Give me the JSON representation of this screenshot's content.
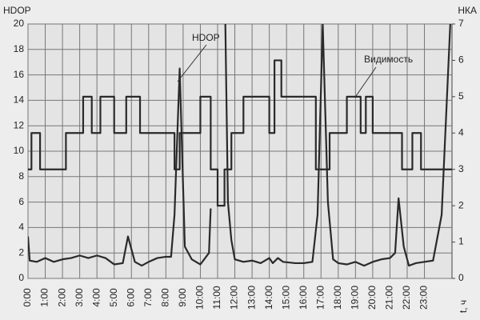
{
  "chart_data": {
    "type": "line",
    "ylabel": "HDOP",
    "y2label": "НКА",
    "xlabel": "t, ч",
    "xlim": [
      0,
      24.6
    ],
    "xticks": [
      {
        "value": 0,
        "label": "0:00"
      },
      {
        "value": 1,
        "label": "1:00"
      },
      {
        "value": 2,
        "label": "2:00"
      },
      {
        "value": 3,
        "label": "3:00"
      },
      {
        "value": 4,
        "label": "4:00"
      },
      {
        "value": 5,
        "label": "5:00"
      },
      {
        "value": 6,
        "label": "6:00"
      },
      {
        "value": 7,
        "label": "7:00"
      },
      {
        "value": 8,
        "label": "8:00"
      },
      {
        "value": 9,
        "label": "9:00"
      },
      {
        "value": 10,
        "label": "10:00"
      },
      {
        "value": 11,
        "label": "11:00"
      },
      {
        "value": 12,
        "label": "12:00"
      },
      {
        "value": 13,
        "label": "13:00"
      },
      {
        "value": 14,
        "label": "14:00"
      },
      {
        "value": 15,
        "label": "15:00"
      },
      {
        "value": 16,
        "label": "16:00"
      },
      {
        "value": 17,
        "label": "17:00"
      },
      {
        "value": 18,
        "label": "18:00"
      },
      {
        "value": 19,
        "label": "19:00"
      },
      {
        "value": 20,
        "label": "20:00"
      },
      {
        "value": 21,
        "label": "21:00"
      },
      {
        "value": 22,
        "label": "22:00"
      },
      {
        "value": 23,
        "label": "23:00"
      }
    ],
    "ylim": [
      0,
      20
    ],
    "yticks": [
      0,
      2,
      4,
      6,
      8,
      10,
      12,
      14,
      16,
      18,
      20
    ],
    "y2lim": [
      0,
      7
    ],
    "y2ticks": [
      0,
      1,
      2,
      3,
      4,
      5,
      6,
      7
    ],
    "grid": true,
    "series": [
      {
        "name": "HDOP",
        "color": "#2a2a2a",
        "x": [
          0,
          0.1,
          0.5,
          1,
          1.5,
          2,
          2.5,
          3,
          3.5,
          4,
          4.5,
          5,
          5.5,
          5.8,
          6.2,
          6.6,
          7,
          7.5,
          8,
          8.3,
          8.5,
          8.8,
          9.1,
          9.5,
          10,
          10.5,
          10.6,
          null,
          11.45,
          11.6,
          11.8,
          12,
          12.5,
          13,
          13.5,
          14,
          14.2,
          14.5,
          14.8,
          15.5,
          16,
          16.5,
          16.8,
          17.1,
          17.4,
          17.7,
          18,
          18.5,
          19,
          19.5,
          20,
          20.5,
          21,
          21.3,
          21.5,
          21.8,
          22.1,
          22.5,
          23,
          23.5,
          24,
          24.5
        ],
        "values": [
          3.3,
          1.4,
          1.3,
          1.6,
          1.3,
          1.5,
          1.6,
          1.8,
          1.6,
          1.8,
          1.6,
          1.1,
          1.2,
          3.3,
          1.3,
          1.0,
          1.3,
          1.6,
          1.7,
          1.7,
          5,
          16.5,
          2.5,
          1.5,
          1.1,
          2,
          5.5,
          null,
          20,
          6,
          3,
          1.5,
          1.3,
          1.4,
          1.2,
          1.6,
          1.2,
          1.6,
          1.3,
          1.2,
          1.2,
          1.3,
          5,
          20,
          6,
          1.5,
          1.2,
          1.1,
          1.3,
          1.0,
          1.3,
          1.5,
          1.6,
          2,
          6.3,
          2.5,
          1.0,
          1.2,
          1.3,
          1.4,
          5,
          20
        ]
      },
      {
        "name": "Видимость",
        "color": "#2a2a2a",
        "axis": "y2",
        "x": [
          0,
          0.2,
          0.2,
          0.7,
          0.7,
          2.2,
          2.2,
          3.2,
          3.2,
          3.7,
          3.7,
          4.2,
          4.2,
          5.0,
          5.0,
          5.7,
          5.7,
          6.5,
          6.5,
          8.5,
          8.5,
          8.8,
          8.8,
          10.0,
          10.0,
          10.6,
          10.6,
          11.0,
          11.0,
          11.4,
          11.4,
          11.8,
          11.8,
          12.5,
          12.5,
          14.0,
          14.0,
          14.3,
          14.3,
          14.7,
          14.7,
          16.7,
          16.7,
          17.5,
          17.5,
          18.5,
          18.5,
          19.3,
          19.3,
          19.6,
          19.6,
          20.0,
          20.0,
          21.7,
          21.7,
          22.3,
          22.3,
          22.8,
          22.8,
          24.6
        ],
        "values": [
          3,
          3,
          4,
          4,
          3,
          3,
          4,
          4,
          5,
          5,
          4,
          4,
          5,
          5,
          4,
          4,
          5,
          5,
          4,
          4,
          3,
          3,
          4,
          4,
          5,
          5,
          3,
          3,
          2,
          2,
          3,
          3,
          4,
          4,
          5,
          5,
          4,
          4,
          6,
          6,
          5,
          5,
          3,
          3,
          4,
          4,
          5,
          5,
          4,
          4,
          5,
          5,
          4,
          4,
          3,
          3,
          4,
          4,
          3,
          3
        ]
      }
    ]
  }
}
